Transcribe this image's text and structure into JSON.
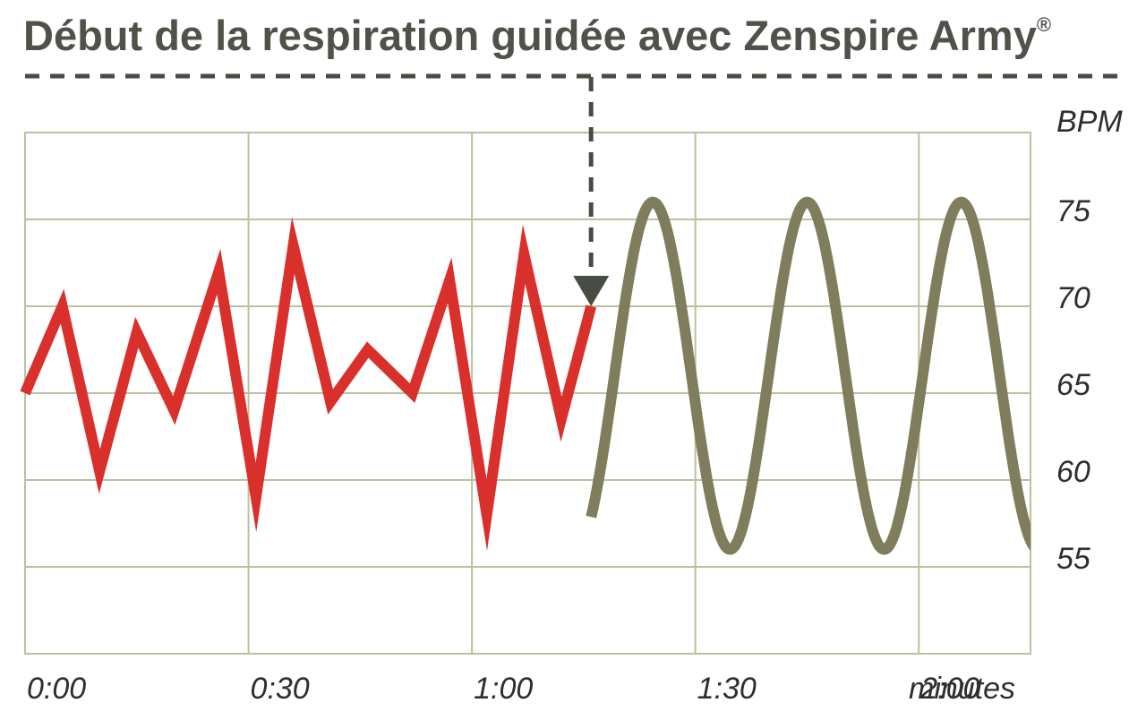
{
  "title": {
    "text": "Début de la respiration guidée avec Zenspire Army",
    "mark": "®"
  },
  "colors": {
    "before": "#d9302c",
    "after": "#7f7d5c",
    "grid": "#bcc0a0",
    "marker": "#474d43",
    "title": "#4f5249",
    "tick_text": "#2e2e2e"
  },
  "chart_data": {
    "type": "line",
    "title": "Début de la respiration guidée avec Zenspire Army®",
    "xlabel": "minutes",
    "ylabel": "BPM",
    "xlim": [
      0,
      135
    ],
    "ylim": [
      50,
      80
    ],
    "x_ticks": [
      0,
      30,
      60,
      90,
      120
    ],
    "x_tick_labels": [
      "0:00",
      "0:30",
      "1:00",
      "1:30",
      "2:00"
    ],
    "y_ticks": [
      55,
      60,
      65,
      70,
      75
    ],
    "y_tick_labels": [
      "55",
      "60",
      "65",
      "70",
      "75"
    ],
    "grid": true,
    "annotation": {
      "type": "arrow",
      "x": 76,
      "y": 70
    },
    "series": [
      {
        "x": [
          0,
          5,
          10,
          15,
          20,
          26,
          31,
          36,
          41,
          46,
          52,
          57,
          62,
          67,
          72,
          76
        ],
        "y": [
          65,
          70,
          60.5,
          68.5,
          64,
          72,
          59,
          73.5,
          64.5,
          67.5,
          65,
          71.5,
          58,
          73,
          63.5,
          70
        ]
      },
      {
        "type": "sine",
        "x_start": 76,
        "x_end": 150,
        "center": 66,
        "amplitude": 10,
        "period": 20.7,
        "x_peak": 84.3
      }
    ]
  }
}
